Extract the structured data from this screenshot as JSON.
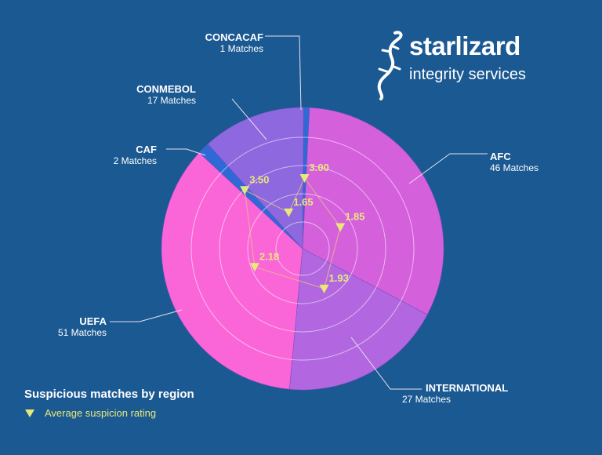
{
  "chart_data": {
    "type": "pie",
    "title": "Suspicious matches by region",
    "slices": [
      {
        "label": "CONCACAF",
        "matches": 1,
        "matches_label": "1 Matches",
        "color": "#2f69d6",
        "rating": 3.0,
        "rating_label": "3.00"
      },
      {
        "label": "AFC",
        "matches": 46,
        "matches_label": "46 Matches",
        "color": "#d560dc",
        "rating": 1.85,
        "rating_label": "1.85"
      },
      {
        "label": "INTERNATIONAL",
        "matches": 27,
        "matches_label": "27 Matches",
        "color": "#b267e0",
        "rating": 1.93,
        "rating_label": "1.93"
      },
      {
        "label": "UEFA",
        "matches": 51,
        "matches_label": "51 Matches",
        "color": "#fa66d8",
        "rating": 2.18,
        "rating_label": "2.18"
      },
      {
        "label": "CAF",
        "matches": 2,
        "matches_label": "2 Matches",
        "color": "#2f69d6",
        "rating": 3.5,
        "rating_label": "3.50"
      },
      {
        "label": "CONMEBOL",
        "matches": 17,
        "matches_label": "17 Matches",
        "color": "#8e68de",
        "rating": 1.65,
        "rating_label": "1.65"
      }
    ],
    "secondary_series": {
      "name": "Average suspicion rating",
      "marker": "triangle-down",
      "color": "#e8e87a"
    },
    "rating_axis_max": 5,
    "grid": true,
    "legend_position": "bottom-left"
  },
  "legend": {
    "title": "Suspicious matches by region",
    "item": "Average suspicion rating"
  },
  "logo": {
    "wordmark": "starlizard",
    "tagline": "integrity services"
  },
  "colors": {
    "background": "#1b5992",
    "marker": "#e8e87a",
    "label_text": "#ffffff"
  }
}
